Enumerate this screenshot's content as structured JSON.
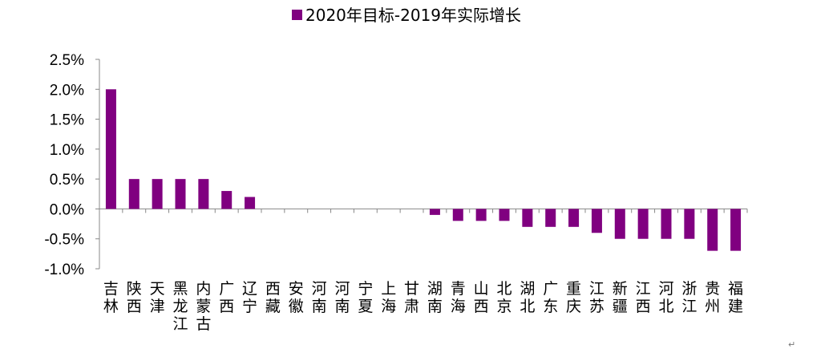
{
  "chart_data": {
    "type": "bar",
    "title": "",
    "xlabel": "",
    "ylabel": "",
    "ylim": [
      -1.0,
      2.5
    ],
    "y_ticks": [
      "2.5%",
      "2.0%",
      "1.5%",
      "1.0%",
      "0.5%",
      "0.0%",
      "-0.5%",
      "-1.0%"
    ],
    "y_tick_values": [
      2.5,
      2.0,
      1.5,
      1.0,
      0.5,
      0.0,
      -0.5,
      -1.0
    ],
    "legend_position": "top-center",
    "grid": false,
    "categories": [
      "吉林",
      "陕西",
      "天津",
      "黑龙江",
      "内蒙古",
      "广西",
      "辽宁",
      "西藏",
      "安徽",
      "河南",
      "河南",
      "宁夏",
      "上海",
      "甘肃",
      "湖南",
      "青海",
      "山西",
      "北京",
      "湖北",
      "广东",
      "重庆",
      "江苏",
      "新疆",
      "江西",
      "河北",
      "浙江",
      "贵州",
      "福建"
    ],
    "series": [
      {
        "name": "2020年目标-2019年实际增长",
        "color": "#800080",
        "values": [
          2.0,
          0.5,
          0.5,
          0.5,
          0.5,
          0.3,
          0.2,
          0,
          0,
          0,
          0,
          0,
          0,
          0,
          -0.1,
          -0.2,
          -0.2,
          -0.2,
          -0.3,
          -0.3,
          -0.3,
          -0.4,
          -0.5,
          -0.5,
          -0.5,
          -0.5,
          -0.7,
          -0.7
        ]
      }
    ]
  },
  "marks": {
    "paragraph_mark": "↵"
  }
}
